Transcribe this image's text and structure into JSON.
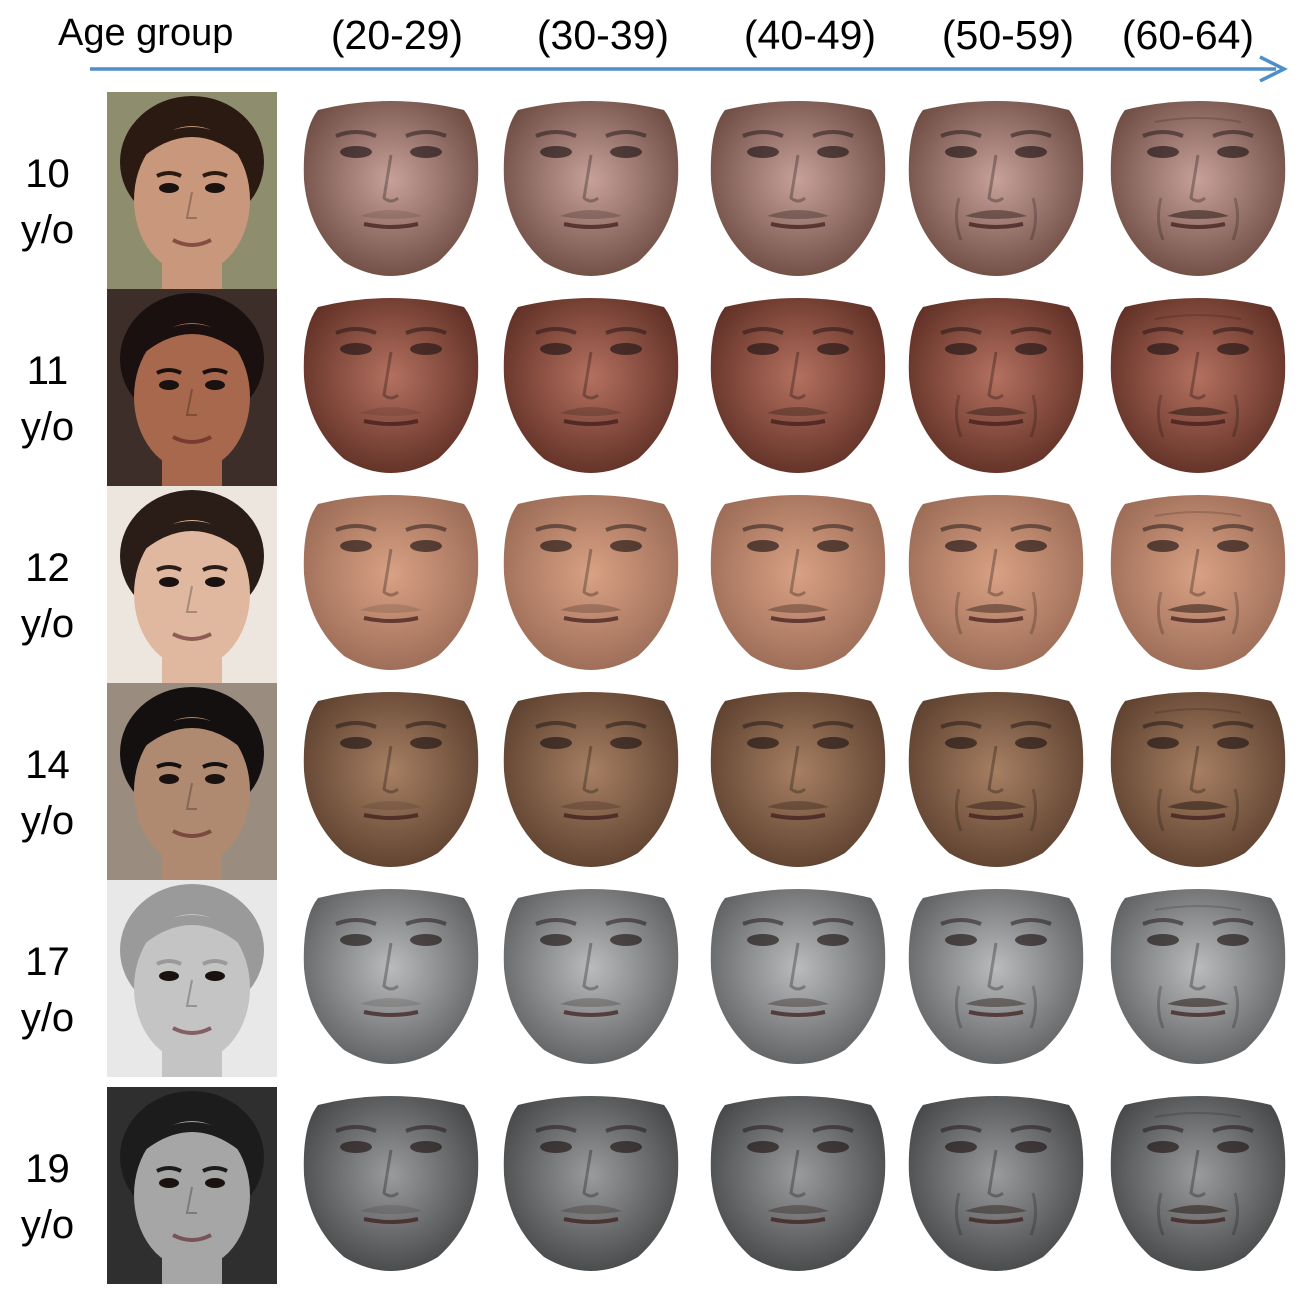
{
  "header": {
    "title": "Age group",
    "columns": [
      "(20-29)",
      "(30-39)",
      "(40-49)",
      "(50-59)",
      "(60-64)"
    ]
  },
  "rows": [
    {
      "age": "10",
      "unit": "y/o",
      "tone": "#c7a09a",
      "dark": "#6b4a40",
      "bg": "#8e8d6e",
      "hair": "#2b1a12",
      "skin": "#c9977c"
    },
    {
      "age": "11",
      "unit": "y/o",
      "tone": "#b4705f",
      "dark": "#5e2e24",
      "bg": "#3d2e2a",
      "hair": "#1a1010",
      "skin": "#a8684d"
    },
    {
      "age": "12",
      "unit": "y/o",
      "tone": "#d9a184",
      "dark": "#9a6a55",
      "bg": "#ede6df",
      "hair": "#2a1d18",
      "skin": "#e0b8a0"
    },
    {
      "age": "14",
      "unit": "y/o",
      "tone": "#a77f62",
      "dark": "#5b3f2e",
      "bg": "#9a8c7e",
      "hair": "#141010",
      "skin": "#b08a70"
    },
    {
      "age": "17",
      "unit": "y/o",
      "tone": "#b9bbbc",
      "dark": "#5c5e60",
      "bg": "#e8e8e8",
      "hair": "#9a9a9a",
      "skin": "#c4c4c4"
    },
    {
      "age": "19",
      "unit": "y/o",
      "tone": "#9a9b9c",
      "dark": "#444546",
      "bg": "#2f2f2f",
      "hair": "#1c1c1c",
      "skin": "#a6a6a6"
    }
  ]
}
